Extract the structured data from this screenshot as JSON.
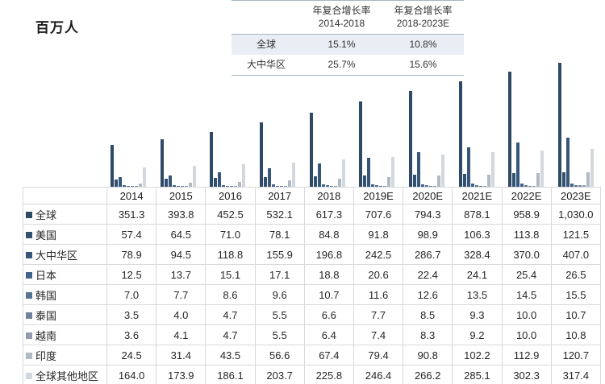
{
  "title": "百万人",
  "cagr_table": {
    "columns": [
      {
        "line1": "年复合增长率",
        "line2": "2014-2018"
      },
      {
        "line1": "年复合增长率",
        "line2": "2018-2023E"
      }
    ],
    "rows": [
      {
        "label": "全球",
        "v1": "15.1%",
        "v2": "10.8%"
      },
      {
        "label": "大中华区",
        "v1": "25.7%",
        "v2": "15.6%"
      }
    ],
    "highlight_row_color": "#e8eef3",
    "border_color": "#a6b6c3"
  },
  "chart_data": {
    "type": "bar",
    "title": "百万人",
    "ylabel": "百万人",
    "categories": [
      "2014",
      "2015",
      "2016",
      "2017",
      "2018",
      "2019E",
      "2020E",
      "2021E",
      "2022E",
      "2023E"
    ],
    "series": [
      {
        "name": "全球",
        "color": "#2e4a66",
        "values": [
          351.3,
          393.8,
          452.5,
          532.1,
          617.3,
          707.6,
          794.3,
          878.1,
          958.9,
          1030.0
        ]
      },
      {
        "name": "美国",
        "color": "#325070",
        "values": [
          57.4,
          64.5,
          71.0,
          78.1,
          84.8,
          91.8,
          98.9,
          106.3,
          113.8,
          121.5
        ]
      },
      {
        "name": "大中华区",
        "color": "#36567a",
        "values": [
          78.9,
          94.5,
          118.8,
          155.9,
          196.8,
          242.5,
          286.7,
          328.4,
          370.0,
          407.0
        ]
      },
      {
        "name": "日本",
        "color": "#42648a",
        "values": [
          12.5,
          13.7,
          15.1,
          17.1,
          18.8,
          20.6,
          22.4,
          24.1,
          25.4,
          26.5
        ]
      },
      {
        "name": "韩国",
        "color": "#567392",
        "values": [
          7.0,
          7.7,
          8.6,
          9.6,
          10.7,
          11.6,
          12.6,
          13.5,
          14.5,
          15.5
        ]
      },
      {
        "name": "泰国",
        "color": "#70839c",
        "values": [
          3.5,
          4.0,
          4.7,
          5.5,
          6.6,
          7.7,
          8.5,
          9.3,
          10.0,
          10.7
        ]
      },
      {
        "name": "越南",
        "color": "#8f9daf",
        "values": [
          3.6,
          4.1,
          4.7,
          5.5,
          6.4,
          7.4,
          8.3,
          9.2,
          10.0,
          10.8
        ]
      },
      {
        "name": "印度",
        "color": "#b0bac5",
        "values": [
          24.5,
          31.4,
          43.5,
          56.6,
          67.4,
          79.4,
          90.8,
          102.2,
          112.9,
          120.7
        ]
      },
      {
        "name": "全球其他地区",
        "color": "#d2d8de",
        "values": [
          164.0,
          173.9,
          186.1,
          203.7,
          225.8,
          246.4,
          266.2,
          285.1,
          302.3,
          317.4
        ]
      }
    ],
    "ylim": [
      0,
      1070
    ],
    "grid": false,
    "legend_position": "table-row-labels"
  },
  "table": {
    "header": [
      "",
      "2014",
      "2015",
      "2016",
      "2017",
      "2018",
      "2019E",
      "2020E",
      "2021E",
      "2022E",
      "2023E"
    ]
  }
}
